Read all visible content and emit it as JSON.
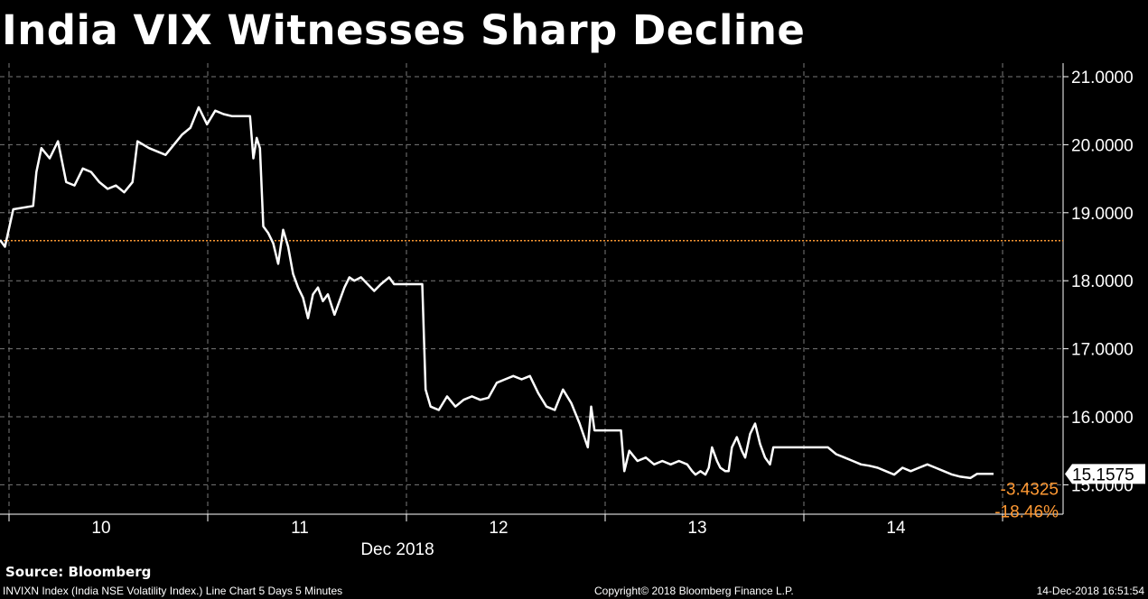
{
  "chart_data": {
    "type": "line",
    "title": "India VIX Witnesses Sharp Decline",
    "x_tick_labels": [
      "10",
      "11",
      "12",
      "13",
      "14"
    ],
    "x_axis_label": "Dec 2018",
    "y_tick_labels": [
      "21.0000",
      "20.0000",
      "19.0000",
      "18.0000",
      "17.0000",
      "16.0000",
      "15.0000"
    ],
    "ylim": [
      14.7,
      21.2
    ],
    "grid": true,
    "reference_line": 18.59,
    "last_value_label": "15.1575",
    "change_label": "-3.4325",
    "change_pct_label": "-18.46%",
    "colors": {
      "line": "#ffffff",
      "reference": "#ff9933",
      "change": "#ff9933",
      "grid": "#7a7a7a"
    },
    "series": [
      {
        "values": [
          [
            0.0,
            18.6
          ],
          [
            0.03,
            18.5
          ],
          [
            0.08,
            19.05
          ],
          [
            0.2,
            19.1
          ],
          [
            0.22,
            19.6
          ],
          [
            0.25,
            19.95
          ],
          [
            0.3,
            19.8
          ],
          [
            0.35,
            20.05
          ],
          [
            0.4,
            19.45
          ],
          [
            0.45,
            19.4
          ],
          [
            0.5,
            19.65
          ],
          [
            0.55,
            19.6
          ],
          [
            0.6,
            19.45
          ],
          [
            0.65,
            19.35
          ],
          [
            0.7,
            19.4
          ],
          [
            0.75,
            19.3
          ],
          [
            0.8,
            19.45
          ],
          [
            0.83,
            20.05
          ],
          [
            0.9,
            19.95
          ],
          [
            1.0,
            19.85
          ],
          [
            1.05,
            20.0
          ],
          [
            1.1,
            20.15
          ],
          [
            1.15,
            20.25
          ],
          [
            1.2,
            20.55
          ],
          [
            1.25,
            20.3
          ],
          [
            1.3,
            20.5
          ],
          [
            1.35,
            20.45
          ],
          [
            1.4,
            20.42
          ],
          [
            1.51,
            20.42
          ],
          [
            1.53,
            19.8
          ],
          [
            1.55,
            20.1
          ],
          [
            1.57,
            19.95
          ],
          [
            1.59,
            18.8
          ],
          [
            1.62,
            18.7
          ],
          [
            1.65,
            18.55
          ],
          [
            1.68,
            18.25
          ],
          [
            1.71,
            18.75
          ],
          [
            1.74,
            18.5
          ],
          [
            1.77,
            18.1
          ],
          [
            1.8,
            17.9
          ],
          [
            1.83,
            17.75
          ],
          [
            1.86,
            17.45
          ],
          [
            1.89,
            17.8
          ],
          [
            1.92,
            17.9
          ],
          [
            1.95,
            17.7
          ],
          [
            1.98,
            17.8
          ],
          [
            2.02,
            17.5
          ],
          [
            2.05,
            17.7
          ],
          [
            2.08,
            17.9
          ],
          [
            2.11,
            18.05
          ],
          [
            2.14,
            18.0
          ],
          [
            2.18,
            18.05
          ],
          [
            2.22,
            17.95
          ],
          [
            2.26,
            17.85
          ],
          [
            2.3,
            17.95
          ],
          [
            2.35,
            18.05
          ],
          [
            2.38,
            17.95
          ],
          [
            2.55,
            17.95
          ],
          [
            2.57,
            16.4
          ],
          [
            2.6,
            16.15
          ],
          [
            2.65,
            16.1
          ],
          [
            2.7,
            16.3
          ],
          [
            2.75,
            16.15
          ],
          [
            2.8,
            16.25
          ],
          [
            2.85,
            16.3
          ],
          [
            2.9,
            16.25
          ],
          [
            2.95,
            16.28
          ],
          [
            3.0,
            16.5
          ],
          [
            3.05,
            16.55
          ],
          [
            3.1,
            16.6
          ],
          [
            3.15,
            16.55
          ],
          [
            3.2,
            16.6
          ],
          [
            3.25,
            16.35
          ],
          [
            3.3,
            16.15
          ],
          [
            3.35,
            16.1
          ],
          [
            3.4,
            16.4
          ],
          [
            3.45,
            16.2
          ],
          [
            3.5,
            15.9
          ],
          [
            3.55,
            15.55
          ],
          [
            3.57,
            16.15
          ],
          [
            3.59,
            15.8
          ],
          [
            3.75,
            15.8
          ],
          [
            3.77,
            15.2
          ],
          [
            3.8,
            15.5
          ],
          [
            3.85,
            15.35
          ],
          [
            3.9,
            15.4
          ],
          [
            3.95,
            15.3
          ],
          [
            4.0,
            15.35
          ],
          [
            4.05,
            15.3
          ],
          [
            4.1,
            15.35
          ],
          [
            4.15,
            15.3
          ],
          [
            4.18,
            15.2
          ],
          [
            4.2,
            15.15
          ],
          [
            4.23,
            15.2
          ],
          [
            4.26,
            15.15
          ],
          [
            4.28,
            15.25
          ],
          [
            4.3,
            15.55
          ],
          [
            4.33,
            15.35
          ],
          [
            4.35,
            15.25
          ],
          [
            4.38,
            15.2
          ],
          [
            4.4,
            15.2
          ],
          [
            4.42,
            15.55
          ],
          [
            4.45,
            15.7
          ],
          [
            4.48,
            15.5
          ],
          [
            4.5,
            15.4
          ],
          [
            4.53,
            15.75
          ],
          [
            4.56,
            15.9
          ],
          [
            4.59,
            15.6
          ],
          [
            4.62,
            15.4
          ],
          [
            4.65,
            15.3
          ],
          [
            4.67,
            15.55
          ],
          [
            5.0,
            15.55
          ],
          [
            5.05,
            15.45
          ],
          [
            5.1,
            15.4
          ],
          [
            5.15,
            15.35
          ],
          [
            5.2,
            15.3
          ],
          [
            5.25,
            15.28
          ],
          [
            5.3,
            15.25
          ],
          [
            5.35,
            15.2
          ],
          [
            5.4,
            15.15
          ],
          [
            5.45,
            15.25
          ],
          [
            5.5,
            15.2
          ],
          [
            5.55,
            15.25
          ],
          [
            5.6,
            15.3
          ],
          [
            5.65,
            15.25
          ],
          [
            5.7,
            15.2
          ],
          [
            5.75,
            15.15
          ],
          [
            5.8,
            15.12
          ],
          [
            5.86,
            15.1
          ],
          [
            5.9,
            15.16
          ],
          [
            6.0,
            15.16
          ]
        ]
      }
    ]
  },
  "footer": {
    "source": "Source: Bloomberg",
    "description": "INVIXN Index (India NSE Volatility Index.) Line Chart 5 Days 5 Minutes",
    "copyright": "Copyright© 2018 Bloomberg Finance L.P.",
    "timestamp": "14-Dec-2018 16:51:54"
  }
}
